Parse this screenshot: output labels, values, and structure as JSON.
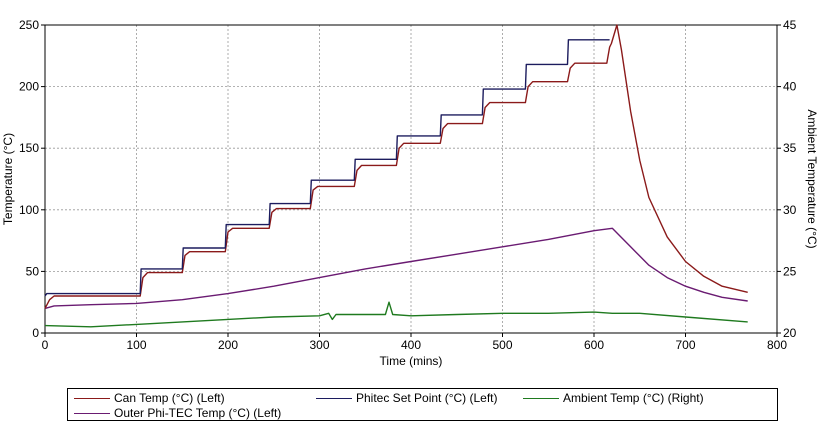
{
  "chart_data": {
    "type": "line",
    "xlabel": "Time (mins)",
    "ylabel": "Temperature (°C)",
    "y2label": "Ambient Temperature (°C)",
    "xlim": [
      0,
      800
    ],
    "ylim": [
      0,
      250
    ],
    "y2lim": [
      20,
      45
    ],
    "xticks": [
      "0",
      "100",
      "200",
      "300",
      "400",
      "500",
      "600",
      "700",
      "800"
    ],
    "yticks": [
      "0",
      "50",
      "100",
      "150",
      "200",
      "250"
    ],
    "y2ticks": [
      "20",
      "25",
      "30",
      "35",
      "40",
      "45"
    ],
    "grid": true,
    "legend_position": "bottom",
    "series": [
      {
        "name": "Can Temp (°C) (Left)",
        "axis": "left",
        "color": "#8b1a1a",
        "x": [
          0,
          5,
          10,
          104,
          107,
          112,
          150,
          153,
          158,
          197,
          200,
          205,
          245,
          248,
          253,
          290,
          293,
          298,
          338,
          341,
          346,
          384,
          387,
          392,
          432,
          435,
          440,
          478,
          481,
          486,
          525,
          528,
          533,
          571,
          574,
          579,
          614,
          617,
          619,
          625,
          630,
          640,
          650,
          660,
          680,
          700,
          720,
          740,
          768
        ],
        "y": [
          20,
          27,
          30,
          30,
          45,
          49,
          49,
          63,
          66,
          66,
          82,
          85,
          85,
          98,
          101,
          101,
          116,
          119,
          119,
          132,
          136,
          136,
          150,
          154,
          154,
          166,
          170,
          170,
          183,
          187,
          187,
          200,
          204,
          204,
          215,
          219,
          219,
          232,
          235,
          250,
          230,
          180,
          140,
          110,
          78,
          58,
          46,
          38,
          33
        ]
      },
      {
        "name": "Phitec Set Point (°C) (Left)",
        "axis": "left",
        "color": "#1c1c5e",
        "x": [
          0,
          2,
          104,
          105,
          150,
          151,
          197,
          198,
          245,
          246,
          290,
          291,
          338,
          339,
          384,
          385,
          432,
          433,
          478,
          479,
          525,
          526,
          571,
          572,
          617
        ],
        "y": [
          30,
          32,
          32,
          52,
          52,
          69,
          69,
          88,
          88,
          105,
          105,
          124,
          124,
          141,
          141,
          160,
          160,
          177,
          177,
          198,
          198,
          218,
          218,
          238,
          238
        ]
      },
      {
        "name": "Ambient Temp (°C) (Right)",
        "axis": "right",
        "color": "#1f7a1f",
        "x": [
          0,
          50,
          100,
          150,
          200,
          250,
          300,
          310,
          314,
          318,
          350,
          372,
          376,
          380,
          400,
          450,
          500,
          550,
          600,
          620,
          650,
          700,
          768
        ],
        "y": [
          20.6,
          20.5,
          20.7,
          20.9,
          21.1,
          21.3,
          21.4,
          21.6,
          21.1,
          21.5,
          21.5,
          21.5,
          22.5,
          21.5,
          21.4,
          21.5,
          21.6,
          21.6,
          21.7,
          21.6,
          21.6,
          21.3,
          20.9
        ]
      },
      {
        "name": "Outer Phi-TEC Temp (°C) (Left)",
        "axis": "left",
        "color": "#6a1b72",
        "x": [
          0,
          10,
          50,
          100,
          150,
          200,
          250,
          300,
          350,
          400,
          450,
          500,
          550,
          600,
          620,
          640,
          660,
          680,
          700,
          720,
          740,
          768
        ],
        "y": [
          20,
          22,
          23,
          24,
          27,
          32,
          38,
          45,
          52,
          58,
          64,
          70,
          76,
          83,
          85,
          70,
          55,
          45,
          38,
          33,
          29,
          26
        ]
      }
    ]
  }
}
